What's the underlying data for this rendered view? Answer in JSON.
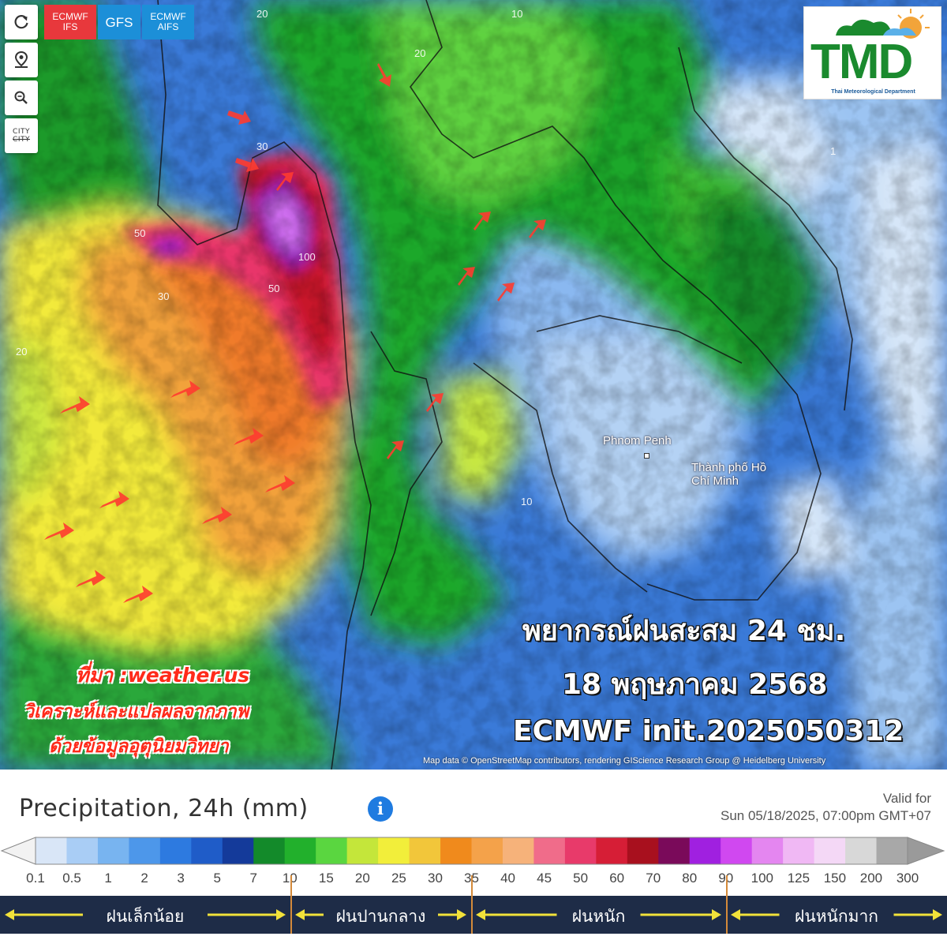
{
  "map": {
    "controls": [
      {
        "name": "refresh-icon",
        "label": "↻"
      },
      {
        "name": "location-pin-icon",
        "label": "⌖"
      },
      {
        "name": "zoom-icon",
        "label": "🔍"
      }
    ],
    "city_toggle": {
      "line1": "CITY",
      "line2": "CITY"
    },
    "model_tabs": [
      {
        "line1": "ECMWF",
        "line2": "IFS",
        "active": true
      },
      {
        "line1": "GFS",
        "line2": "",
        "active": false
      },
      {
        "line1": "ECMWF",
        "line2": "AIFS",
        "active": false
      }
    ],
    "logo": {
      "letters": "TMD",
      "subtitle": "Thai Meteorological Department"
    },
    "places": [
      {
        "name": "Phnom Penh"
      },
      {
        "name": "Thành phố Hồ Chí Minh"
      }
    ],
    "contour_labels": [
      "20",
      "10",
      "20",
      "30",
      "50",
      "100",
      "50",
      "30",
      "20",
      "10",
      "1"
    ],
    "forecast": {
      "line1": "พยากรณ์ฝนสะสม 24 ชม.",
      "line2": "18 พฤษภาคม 2568",
      "line3": "ECMWF init.2025050312"
    },
    "source": {
      "line1": "ที่มา :weather.us",
      "line2": "วิเคราะห์และแปลผลจากภาพ",
      "line3": "ด้วยข้อมูลอุตุนิยมวิทยา"
    },
    "attribution": "Map data © OpenStreetMap contributors, rendering GIScience Research Group @ Heidelberg University"
  },
  "legend": {
    "title": "Precipitation, 24h (mm)",
    "info_icon": "i",
    "valid_label": "Valid for",
    "valid_time": "Sun 05/18/2025, 07:00pm GMT+07",
    "colors": [
      "#d9e6f7",
      "#a9cdf5",
      "#78b4f0",
      "#4d97ea",
      "#2d7ae0",
      "#1f5cc8",
      "#143a9a",
      "#138a2a",
      "#22b02c",
      "#5ad640",
      "#c4e63a",
      "#f2ee3a",
      "#f2c63a",
      "#f08a1c",
      "#f4a24a",
      "#f6b27a",
      "#f06c8a",
      "#e83a6a",
      "#d61e36",
      "#a8101e",
      "#7a0a5a",
      "#a020e0",
      "#d048f0",
      "#e486f0",
      "#f0b8f4",
      "#f4d8f6",
      "#d8d8d8",
      "#a8a8a8"
    ],
    "ticks": [
      "0.1",
      "0.5",
      "1",
      "2",
      "3",
      "5",
      "7",
      "10",
      "15",
      "20",
      "25",
      "30",
      "35",
      "40",
      "45",
      "50",
      "60",
      "70",
      "80",
      "90",
      "100",
      "125",
      "150",
      "200",
      "300"
    ],
    "categories": [
      {
        "label": "ฝนเล็กน้อย"
      },
      {
        "label": "ฝนปานกลาง"
      },
      {
        "label": "ฝนหนัก"
      },
      {
        "label": "ฝนหนักมาก"
      }
    ]
  }
}
